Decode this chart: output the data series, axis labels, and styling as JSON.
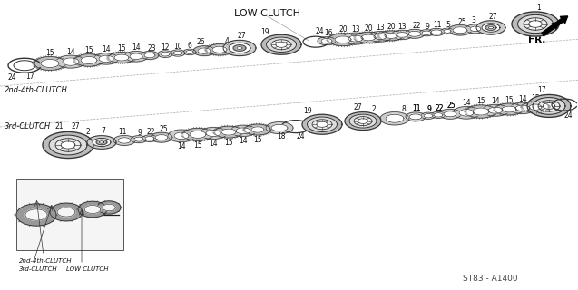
{
  "bg_color": "#ffffff",
  "diagram_title": "LOW CLUTCH",
  "part_number": "ST83 - A1400",
  "fr_label": "FR.",
  "label_2nd4th_top": "2nd-4th-CLUTCH",
  "label_3rd_top": "3rd-CLUTCH",
  "label_2nd4th_inset": "2nd-4th-CLUTCH",
  "label_3rd_inset": "3rd-CLUTCH",
  "label_low_inset": "LOW CLUTCH",
  "diag_line_color": "#aaaaaa",
  "part_color": "#333333",
  "text_color": "#111111"
}
